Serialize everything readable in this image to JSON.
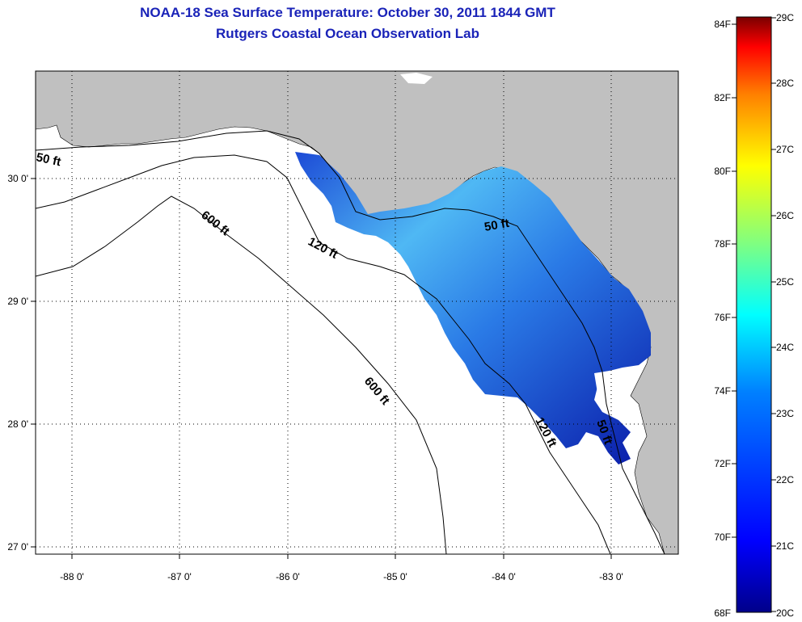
{
  "title": {
    "line1": "NOAA-18 Sea Surface Temperature:  October 30, 2011 1844 GMT",
    "line2": "Rutgers Coastal Ocean Observation Lab"
  },
  "map": {
    "lon_ticks": [
      "-88 0'",
      "-87 0'",
      "-86 0'",
      "-85 0'",
      "-84 0'",
      "-83 0'"
    ],
    "lat_ticks": [
      "30 0'",
      "29 0'",
      "28 0'",
      "27 0'"
    ],
    "contour_labels": {
      "c50a": "50 ft",
      "c50b": "50 ft",
      "c50c": "50 ft",
      "c120a": "120 ft",
      "c120b": "120 ft",
      "c600a": "600 ft",
      "c600b": "600 ft"
    },
    "land_color": "#c0c0c0",
    "water_color": "#ffffff"
  },
  "colorbar": {
    "fahrenheit": [
      "84F",
      "82F",
      "80F",
      "78F",
      "76F",
      "74F",
      "72F",
      "70F",
      "68F"
    ],
    "celsius": [
      "29C",
      "28C",
      "27C",
      "26C",
      "25C",
      "24C",
      "23C",
      "22C",
      "21C",
      "20C"
    ],
    "colors": [
      "#7a0000",
      "#ff0000",
      "#ff8000",
      "#ffff00",
      "#80ff80",
      "#00ffff",
      "#0080ff",
      "#0000ff",
      "#00008a"
    ]
  }
}
